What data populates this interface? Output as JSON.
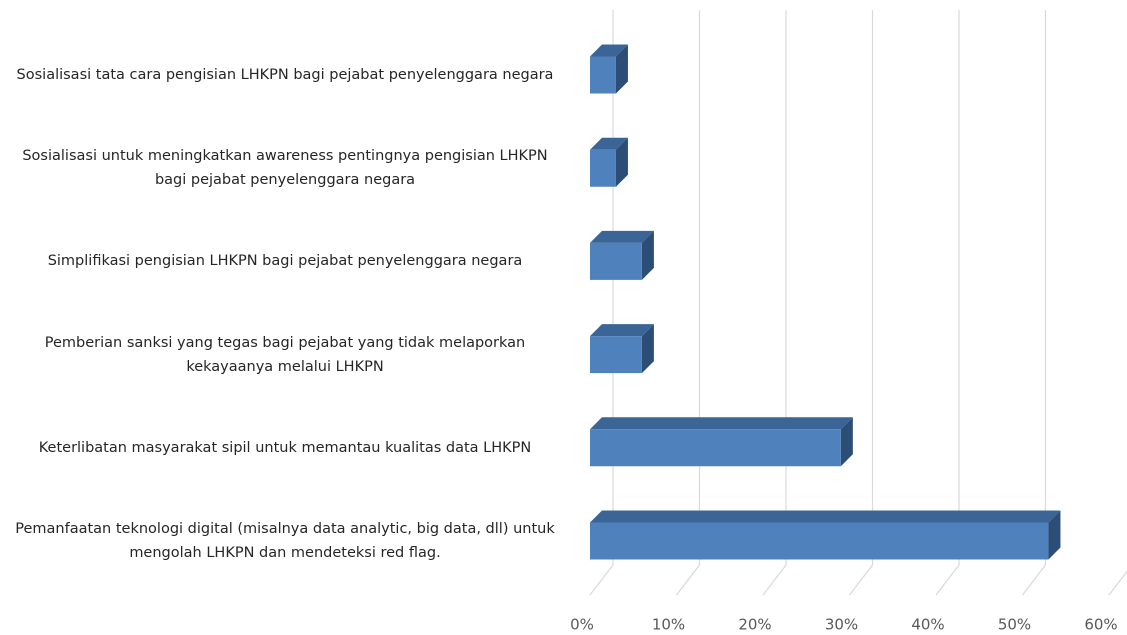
{
  "chart_data": {
    "type": "bar",
    "orientation": "horizontal",
    "categories": [
      "Sosialisasi tata cara pengisian LHKPN bagi pejabat penyelenggara negara",
      "Sosialisasi untuk meningkatkan awareness pentingnya pengisian LHKPN bagi pejabat penyelenggara negara",
      "Simplifikasi pengisian LHKPN bagi pejabat penyelenggara negara",
      "Pemberian sanksi yang tegas bagi pejabat yang tidak melaporkan kekayaanya melalui LHKPN",
      "Keterlibatan masyarakat sipil untuk memantau kualitas data LHKPN",
      "Pemanfaatan teknologi digital (misalnya data analytic, big data, dll) untuk mengolah LHKPN dan mendeteksi red flag."
    ],
    "values": [
      3,
      3,
      6,
      6,
      29,
      53
    ],
    "color": "#4f81bd",
    "xlim": [
      0,
      60
    ],
    "xticks": [
      {
        "value": 0,
        "label": "0%"
      },
      {
        "value": 10,
        "label": "10%"
      },
      {
        "value": 20,
        "label": "20%"
      },
      {
        "value": 30,
        "label": "30%"
      },
      {
        "value": 40,
        "label": "40%"
      },
      {
        "value": 50,
        "label": "50%"
      },
      {
        "value": 60,
        "label": "60%"
      }
    ],
    "grid": true
  }
}
